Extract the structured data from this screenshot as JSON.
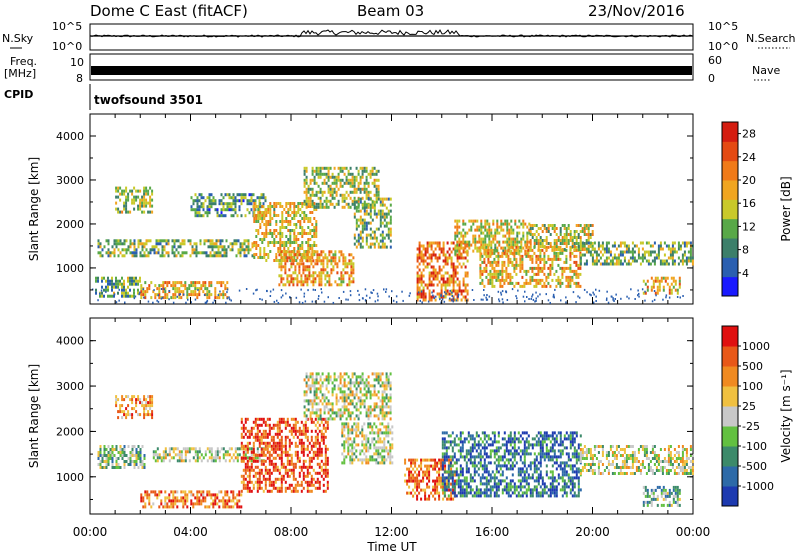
{
  "header": {
    "title": "Dome C East (fitACF)",
    "beam": "Beam 03",
    "date": "23/Nov/2016"
  },
  "top_panels": {
    "nsky_label": "N.Sky",
    "nsearch_label": "N.Search",
    "noise_ticks_left": [
      "10^5",
      "10^0"
    ],
    "noise_ticks_right": [
      "10^5",
      "10^0"
    ],
    "freq_label": "Freq.",
    "freq_unit": "[MHz]",
    "freq_ticks": [
      "10",
      "8"
    ],
    "nave_label": "Nave",
    "nave_ticks": [
      "60",
      "0"
    ],
    "cpid_label": "CPID",
    "cpid_value": "twofsound 3501"
  },
  "chart_data": [
    {
      "type": "heatmap",
      "panel": "power",
      "ylabel": "Slant Range [km]",
      "xlabel": "Time UT",
      "x_ticks": [
        "00:00",
        "04:00",
        "08:00",
        "12:00",
        "16:00",
        "20:00",
        "00:00"
      ],
      "xlim_hours": [
        0,
        24
      ],
      "y_ticks": [
        1000,
        2000,
        3000,
        4000
      ],
      "ylim": [
        180,
        4500
      ],
      "colorbar": {
        "label": "Power [dB]",
        "ticks": [
          "28",
          "24",
          "20",
          "16",
          "12",
          "8",
          "4"
        ],
        "range": [
          0,
          30
        ],
        "colors": [
          "#1a1aff",
          "#2a5fb0",
          "#3c7f6a",
          "#58a848",
          "#c9c92a",
          "#f0a520",
          "#f07a18",
          "#e44a12",
          "#d41d10"
        ]
      },
      "echo_regions": [
        {
          "t0": 0.2,
          "t1": 2.0,
          "r0": 350,
          "r1": 800,
          "level": 0.35
        },
        {
          "t0": 2.0,
          "t1": 5.5,
          "r0": 350,
          "r1": 700,
          "level": 0.6
        },
        {
          "t0": 0.3,
          "t1": 6.5,
          "r0": 1250,
          "r1": 1650,
          "level": 0.4
        },
        {
          "t0": 1.0,
          "t1": 2.5,
          "r0": 2300,
          "r1": 2850,
          "level": 0.45
        },
        {
          "t0": 4.0,
          "t1": 7.0,
          "r0": 2200,
          "r1": 2700,
          "level": 0.3
        },
        {
          "t0": 6.5,
          "t1": 9.0,
          "r0": 1200,
          "r1": 2500,
          "level": 0.55
        },
        {
          "t0": 7.5,
          "t1": 10.5,
          "r0": 600,
          "r1": 1400,
          "level": 0.65
        },
        {
          "t0": 8.5,
          "t1": 11.5,
          "r0": 2400,
          "r1": 3300,
          "level": 0.45
        },
        {
          "t0": 10.5,
          "t1": 12.0,
          "r0": 1500,
          "r1": 2600,
          "level": 0.4
        },
        {
          "t0": 13.0,
          "t1": 15.0,
          "r0": 300,
          "r1": 1600,
          "level": 0.75
        },
        {
          "t0": 14.5,
          "t1": 17.5,
          "r0": 1300,
          "r1": 2100,
          "level": 0.55
        },
        {
          "t0": 15.5,
          "t1": 19.5,
          "r0": 600,
          "r1": 1500,
          "level": 0.6
        },
        {
          "t0": 17.5,
          "t1": 20.0,
          "r0": 1400,
          "r1": 2000,
          "level": 0.5
        },
        {
          "t0": 19.5,
          "t1": 24.0,
          "r0": 1100,
          "r1": 1600,
          "level": 0.4
        },
        {
          "t0": 22.0,
          "t1": 23.5,
          "r0": 400,
          "r1": 800,
          "level": 0.6
        }
      ]
    },
    {
      "type": "heatmap",
      "panel": "velocity",
      "ylabel": "Slant Range [km]",
      "xlabel": "Time UT",
      "x_ticks": [
        "00:00",
        "04:00",
        "08:00",
        "12:00",
        "16:00",
        "20:00",
        "00:00"
      ],
      "xlim_hours": [
        0,
        24
      ],
      "y_ticks": [
        1000,
        2000,
        3000,
        4000
      ],
      "ylim": [
        180,
        4500
      ],
      "colorbar": {
        "label": "Velocity [m s⁻¹]",
        "ticks": [
          "1000",
          "500",
          "100",
          "25",
          "-25",
          "-100",
          "-500",
          "-1000"
        ],
        "colors": [
          "#1d3ab0",
          "#2d6aa8",
          "#3c8a6a",
          "#62c040",
          "#c8c8c8",
          "#f0c040",
          "#f08a20",
          "#e85818",
          "#e01010"
        ]
      },
      "echo_regions": [
        {
          "t0": 0.3,
          "t1": 2.2,
          "r0": 1200,
          "r1": 1700,
          "level": 0.4
        },
        {
          "t0": 1.0,
          "t1": 2.5,
          "r0": 2300,
          "r1": 2800,
          "level": 0.7
        },
        {
          "t0": 2.0,
          "t1": 6.0,
          "r0": 350,
          "r1": 700,
          "level": 0.75
        },
        {
          "t0": 2.5,
          "t1": 7.0,
          "r0": 1350,
          "r1": 1650,
          "level": 0.5
        },
        {
          "t0": 6.0,
          "t1": 9.5,
          "r0": 700,
          "r1": 2300,
          "level": 0.85
        },
        {
          "t0": 8.5,
          "t1": 12.0,
          "r0": 2300,
          "r1": 3300,
          "level": 0.5
        },
        {
          "t0": 10.0,
          "t1": 12.0,
          "r0": 1300,
          "r1": 2200,
          "level": 0.5
        },
        {
          "t0": 12.5,
          "t1": 14.5,
          "r0": 500,
          "r1": 1400,
          "level": 0.8
        },
        {
          "t0": 14.0,
          "t1": 19.5,
          "r0": 600,
          "r1": 2000,
          "level": 0.2
        },
        {
          "t0": 19.5,
          "t1": 24.0,
          "r0": 1100,
          "r1": 1700,
          "level": 0.5
        },
        {
          "t0": 22.0,
          "t1": 23.5,
          "r0": 400,
          "r1": 800,
          "level": 0.35
        }
      ]
    }
  ]
}
